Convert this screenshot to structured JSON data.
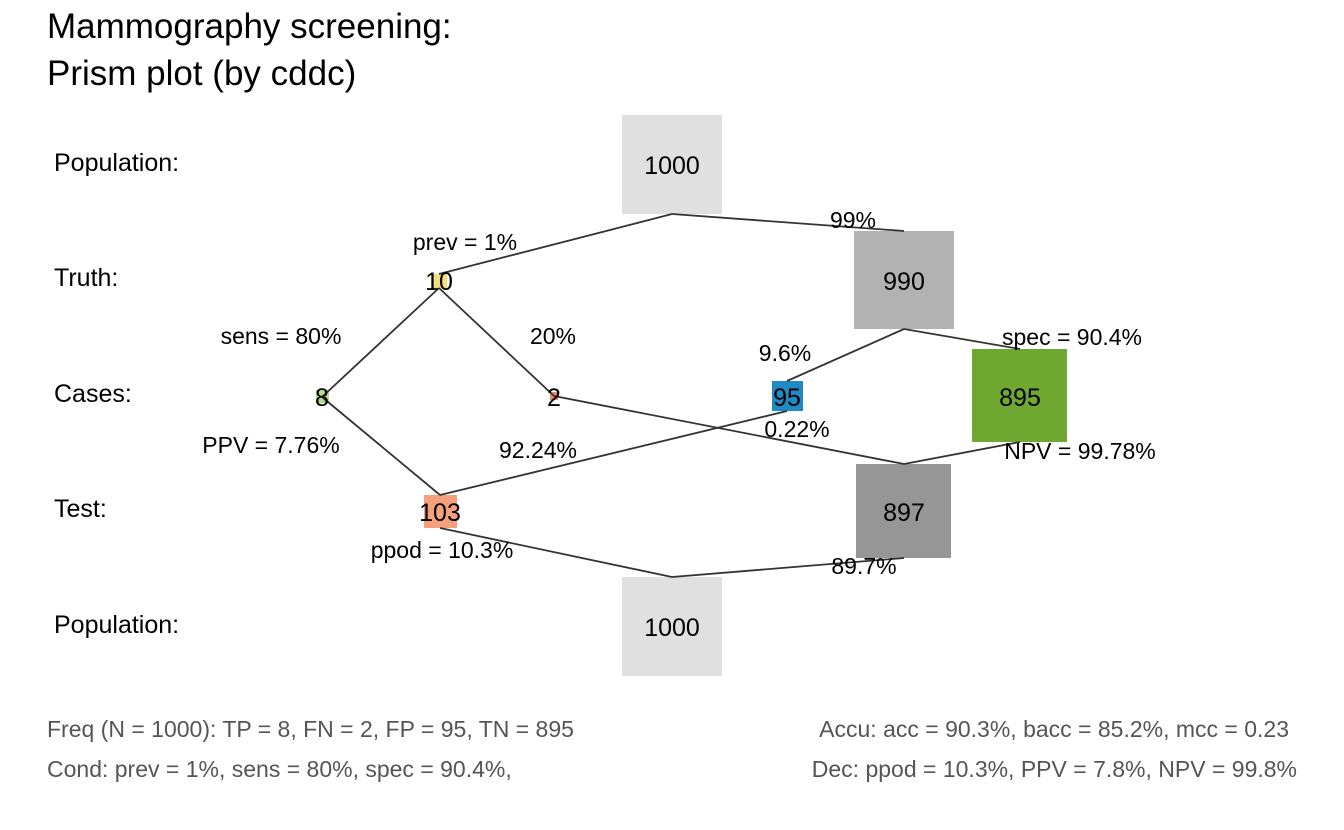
{
  "title": {
    "line1": "Mammography screening:",
    "line2": "Prism plot (by cddc)"
  },
  "row_labels": {
    "population_top": "Population:",
    "truth": "Truth:",
    "cases": "Cases:",
    "test": "Test:",
    "population_bottom": "Population:"
  },
  "nodes": {
    "pop_top": "1000",
    "cond_true": "10",
    "cond_false": "990",
    "tp": "8",
    "fn": "2",
    "fp": "95",
    "tn": "895",
    "dec_pos": "103",
    "dec_neg": "897",
    "pop_bottom": "1000"
  },
  "edge_labels": {
    "prev": "prev = 1%",
    "not_prev": "99%",
    "sens": "sens = 80%",
    "miss": "20%",
    "fart": "9.6%",
    "spec": "spec = 90.4%",
    "ppv": "PPV = 7.76%",
    "fdr": "92.24%",
    "forate": "0.22%",
    "npv": "NPV = 99.78%",
    "ppod": "ppod = 10.3%",
    "not_ppod": "89.7%"
  },
  "footer": {
    "freq": "Freq (N = 1000):  TP = 8, FN = 2, FP = 95, TN = 895",
    "accu": "Accu:  acc = 90.3%, bacc = 85.2%, mcc = 0.23",
    "cond": "Cond:  prev = 1%, sens = 80%, spec = 90.4%,",
    "dec": "Dec:  ppod = 10.3%, PPV = 7.8%, NPV = 99.8%"
  },
  "colors": {
    "population": "#e0e0e0",
    "cond_true": "#f2e07a",
    "cond_false": "#b2b2b2",
    "tp": "#b8d88b",
    "fn": "#ee8866",
    "fp": "#1f8ac4",
    "tn": "#6ea830",
    "dec_pos": "#f4a07c",
    "dec_neg": "#969696"
  }
}
